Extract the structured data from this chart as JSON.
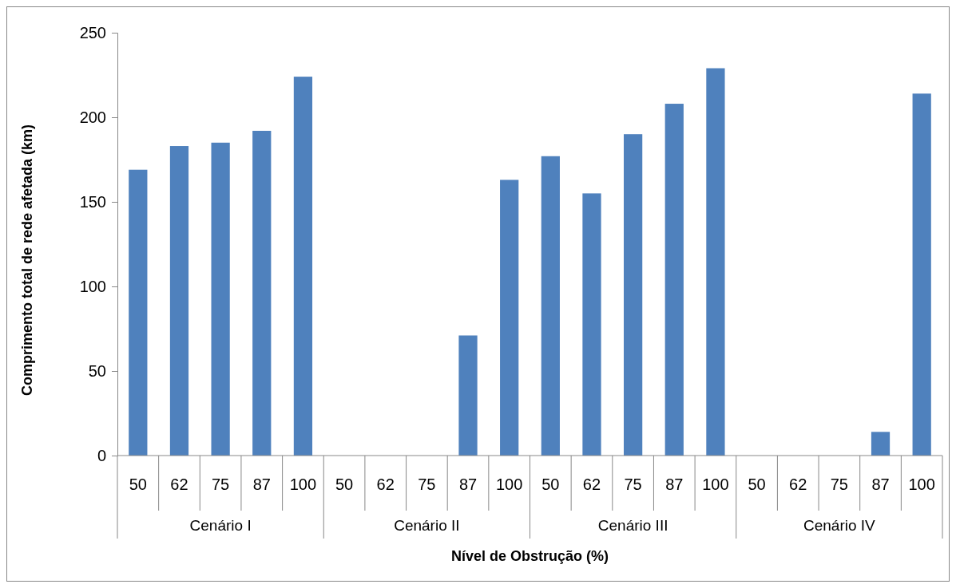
{
  "chart_data": {
    "type": "bar",
    "xlabel": "Nível de Obstrução (%)",
    "ylabel": "Comprimento total de rede afetada (km)",
    "categories": [
      "50",
      "62",
      "75",
      "87",
      "100",
      "50",
      "62",
      "75",
      "87",
      "100",
      "50",
      "62",
      "75",
      "87",
      "100",
      "50",
      "62",
      "75",
      "87",
      "100"
    ],
    "values": [
      169,
      183,
      185,
      192,
      224,
      0,
      0,
      0,
      71,
      163,
      177,
      155,
      190,
      208,
      229,
      0,
      0,
      0,
      14,
      214
    ],
    "color": "#4f81bd",
    "ylim": [
      0,
      250
    ],
    "yticks": [
      0,
      50,
      100,
      150,
      200,
      250
    ],
    "grid": false,
    "annotations": [
      "Cenário I",
      "Cenário II",
      "Cenário III",
      "Cenário IV"
    ]
  }
}
